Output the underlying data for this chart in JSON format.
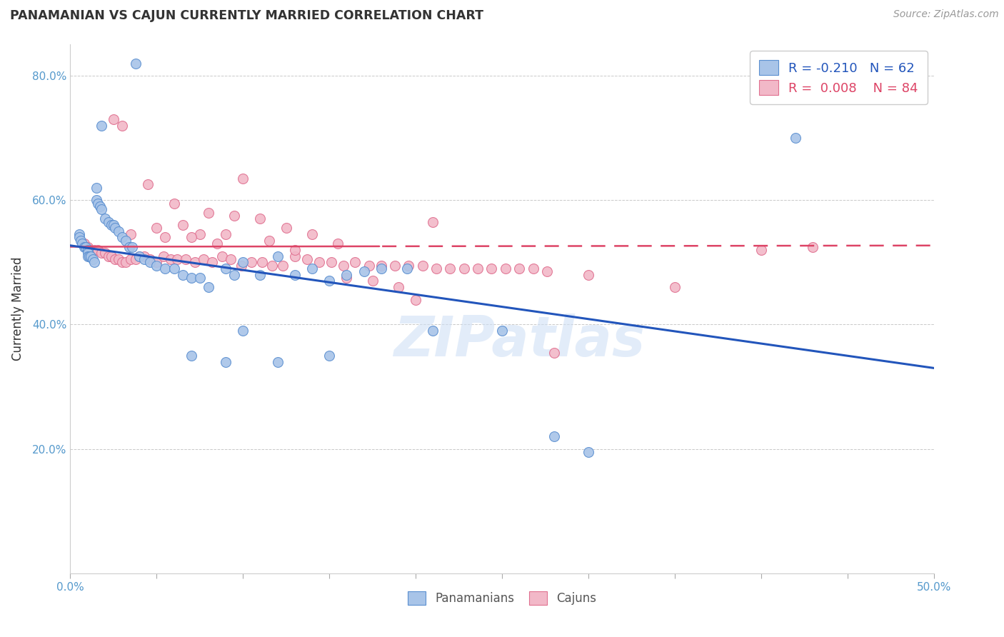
{
  "title": "PANAMANIAN VS CAJUN CURRENTLY MARRIED CORRELATION CHART",
  "source": "Source: ZipAtlas.com",
  "ylabel_label": "Currently Married",
  "xlim": [
    0.0,
    0.5
  ],
  "ylim": [
    0.0,
    0.85
  ],
  "xticks": [
    0.0,
    0.05,
    0.1,
    0.15,
    0.2,
    0.25,
    0.3,
    0.35,
    0.4,
    0.45,
    0.5
  ],
  "xticklabels": [
    "0.0%",
    "",
    "",
    "",
    "",
    "",
    "",
    "",
    "",
    "",
    "50.0%"
  ],
  "yticks": [
    0.0,
    0.2,
    0.4,
    0.6,
    0.8
  ],
  "yticklabels": [
    "",
    "20.0%",
    "40.0%",
    "60.0%",
    "80.0%"
  ],
  "legend_r_blue": "-0.210",
  "legend_n_blue": "62",
  "legend_r_pink": "0.008",
  "legend_n_pink": "84",
  "blue_color": "#A8C4E8",
  "pink_color": "#F2B8C8",
  "blue_edge_color": "#5B8FD0",
  "pink_edge_color": "#E07090",
  "line_blue_color": "#2255BB",
  "line_pink_color": "#DD4466",
  "watermark": "ZIPatlas",
  "blue_x": [
    0.038,
    0.018,
    0.005,
    0.005,
    0.006,
    0.007,
    0.008,
    0.009,
    0.01,
    0.01,
    0.01,
    0.011,
    0.012,
    0.013,
    0.014,
    0.015,
    0.015,
    0.016,
    0.017,
    0.018,
    0.02,
    0.022,
    0.024,
    0.025,
    0.026,
    0.028,
    0.03,
    0.032,
    0.034,
    0.036,
    0.04,
    0.043,
    0.046,
    0.05,
    0.055,
    0.06,
    0.065,
    0.07,
    0.075,
    0.08,
    0.09,
    0.095,
    0.1,
    0.11,
    0.12,
    0.13,
    0.14,
    0.15,
    0.16,
    0.17,
    0.18,
    0.195,
    0.21,
    0.25,
    0.28,
    0.3,
    0.12,
    0.1,
    0.09,
    0.07,
    0.15,
    0.42
  ],
  "blue_y": [
    0.82,
    0.72,
    0.545,
    0.54,
    0.535,
    0.53,
    0.525,
    0.525,
    0.52,
    0.515,
    0.51,
    0.51,
    0.51,
    0.505,
    0.5,
    0.62,
    0.6,
    0.595,
    0.59,
    0.585,
    0.57,
    0.565,
    0.56,
    0.56,
    0.555,
    0.55,
    0.54,
    0.535,
    0.525,
    0.525,
    0.51,
    0.505,
    0.5,
    0.495,
    0.49,
    0.49,
    0.48,
    0.475,
    0.475,
    0.46,
    0.49,
    0.48,
    0.5,
    0.48,
    0.51,
    0.48,
    0.49,
    0.47,
    0.48,
    0.485,
    0.49,
    0.49,
    0.39,
    0.39,
    0.22,
    0.195,
    0.34,
    0.39,
    0.34,
    0.35,
    0.35,
    0.7
  ],
  "pink_x": [
    0.008,
    0.01,
    0.012,
    0.014,
    0.016,
    0.018,
    0.02,
    0.022,
    0.024,
    0.026,
    0.028,
    0.03,
    0.032,
    0.035,
    0.038,
    0.04,
    0.043,
    0.046,
    0.05,
    0.054,
    0.058,
    0.062,
    0.067,
    0.072,
    0.077,
    0.082,
    0.088,
    0.093,
    0.099,
    0.105,
    0.111,
    0.117,
    0.123,
    0.13,
    0.137,
    0.144,
    0.151,
    0.158,
    0.165,
    0.173,
    0.18,
    0.188,
    0.196,
    0.204,
    0.212,
    0.22,
    0.228,
    0.236,
    0.244,
    0.252,
    0.26,
    0.268,
    0.276,
    0.025,
    0.03,
    0.1,
    0.21,
    0.28,
    0.3,
    0.35,
    0.4,
    0.045,
    0.06,
    0.08,
    0.095,
    0.11,
    0.125,
    0.14,
    0.155,
    0.065,
    0.075,
    0.09,
    0.05,
    0.035,
    0.055,
    0.07,
    0.085,
    0.115,
    0.13,
    0.16,
    0.175,
    0.19,
    0.2,
    0.43
  ],
  "pink_y": [
    0.53,
    0.525,
    0.52,
    0.52,
    0.52,
    0.515,
    0.515,
    0.51,
    0.51,
    0.505,
    0.505,
    0.5,
    0.5,
    0.505,
    0.505,
    0.51,
    0.51,
    0.505,
    0.5,
    0.51,
    0.505,
    0.505,
    0.505,
    0.5,
    0.505,
    0.5,
    0.51,
    0.505,
    0.495,
    0.5,
    0.5,
    0.495,
    0.495,
    0.51,
    0.505,
    0.5,
    0.5,
    0.495,
    0.5,
    0.495,
    0.495,
    0.495,
    0.495,
    0.495,
    0.49,
    0.49,
    0.49,
    0.49,
    0.49,
    0.49,
    0.49,
    0.49,
    0.485,
    0.73,
    0.72,
    0.635,
    0.565,
    0.355,
    0.48,
    0.46,
    0.52,
    0.625,
    0.595,
    0.58,
    0.575,
    0.57,
    0.555,
    0.545,
    0.53,
    0.56,
    0.545,
    0.545,
    0.555,
    0.545,
    0.54,
    0.54,
    0.53,
    0.535,
    0.52,
    0.475,
    0.47,
    0.46,
    0.44,
    0.525
  ]
}
